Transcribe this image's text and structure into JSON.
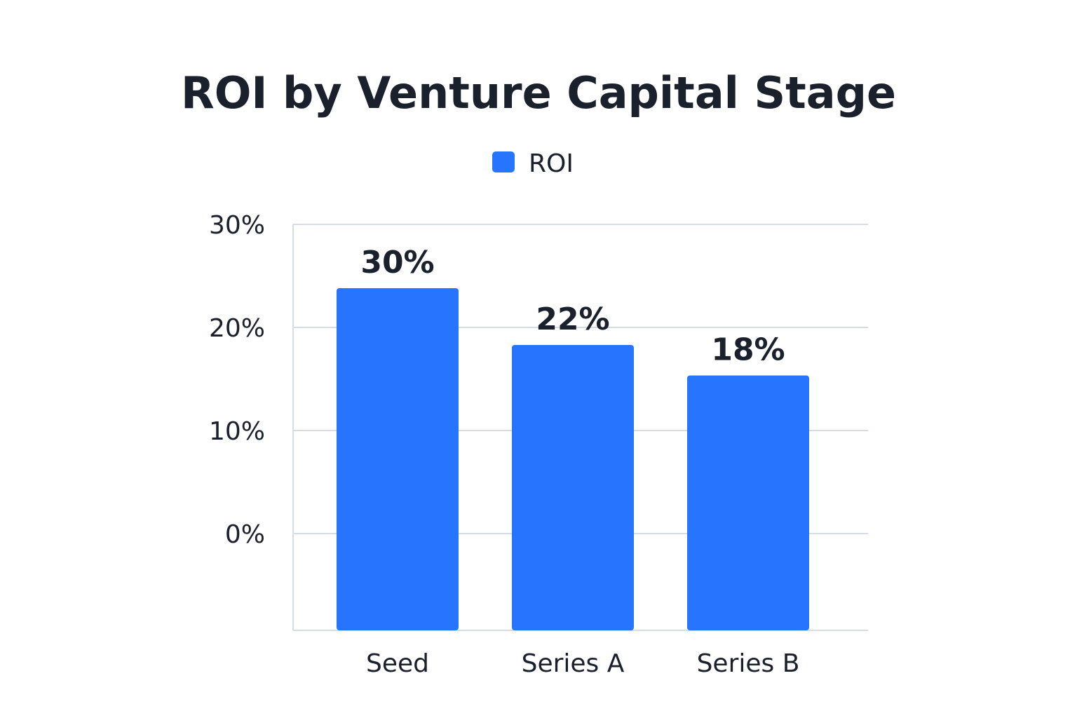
{
  "chart_data": {
    "type": "bar",
    "title": "ROI by Venture Capital Stage",
    "xlabel": "",
    "ylabel": "",
    "categories": [
      "Seed",
      "Series A",
      "Series B"
    ],
    "series": [
      {
        "name": "ROI",
        "color": "#2775ff",
        "values": [
          30,
          22,
          18
        ],
        "data_labels": [
          "30%",
          "22%",
          "18%"
        ]
      }
    ],
    "y_ticks": [
      0,
      10,
      20,
      30
    ],
    "y_tick_labels": [
      "0%",
      "10%",
      "20%",
      "30%"
    ],
    "ylim": [
      0,
      30
    ],
    "grid": true,
    "legend_position": "top-center"
  }
}
